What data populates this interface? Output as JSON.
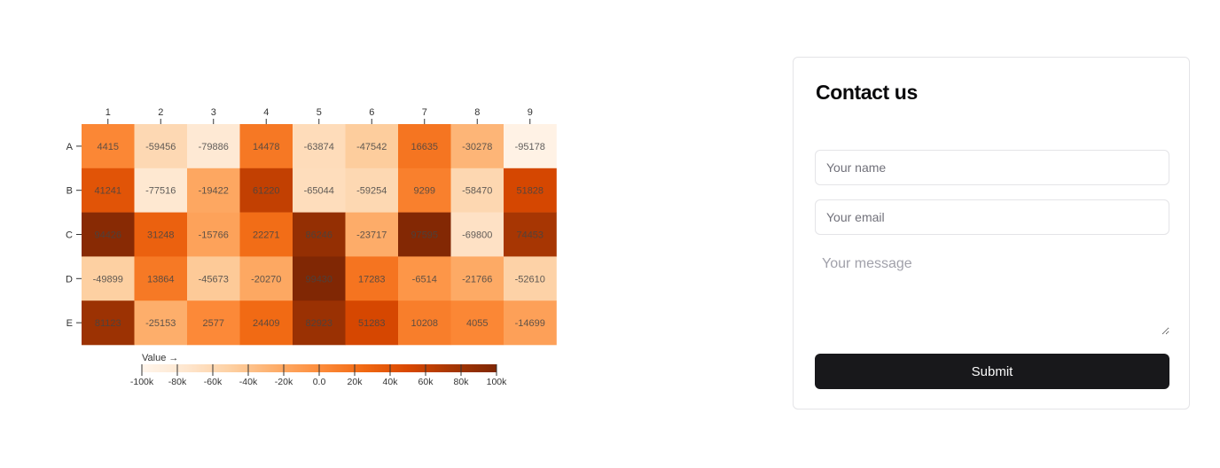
{
  "chart_data": {
    "type": "heatmap",
    "x_categories": [
      "1",
      "2",
      "3",
      "4",
      "5",
      "6",
      "7",
      "8",
      "9"
    ],
    "y_categories": [
      "A",
      "B",
      "C",
      "D",
      "E"
    ],
    "values": [
      [
        4415,
        -59456,
        -79886,
        14478,
        -63874,
        -47542,
        16635,
        -30278,
        -95178
      ],
      [
        41241,
        -77516,
        -19422,
        61220,
        -65044,
        -59254,
        9299,
        -58470,
        51828
      ],
      [
        94426,
        31248,
        -15766,
        22271,
        86246,
        -23717,
        97595,
        -69800,
        74453
      ],
      [
        -49899,
        13864,
        -45673,
        -20270,
        99430,
        17283,
        -6514,
        -21766,
        -52610
      ],
      [
        81123,
        -25153,
        2577,
        24409,
        82923,
        51283,
        10208,
        4055,
        -14699
      ]
    ],
    "color_scale": {
      "scheme": "Oranges",
      "domain": [
        -100000,
        100000
      ],
      "label": "Value →",
      "ticks": [
        -100000,
        -80000,
        -60000,
        -40000,
        -20000,
        0,
        20000,
        40000,
        60000,
        80000,
        100000
      ],
      "tick_labels": [
        "-100k",
        "-80k",
        "-60k",
        "-40k",
        "-20k",
        "0.0",
        "20k",
        "40k",
        "60k",
        "80k",
        "100k"
      ]
    },
    "legend_placement": "bottom"
  },
  "contact": {
    "title": "Contact us",
    "name_placeholder": "Your name",
    "email_placeholder": "Your email",
    "message_placeholder": "Your message",
    "submit_label": "Submit"
  }
}
